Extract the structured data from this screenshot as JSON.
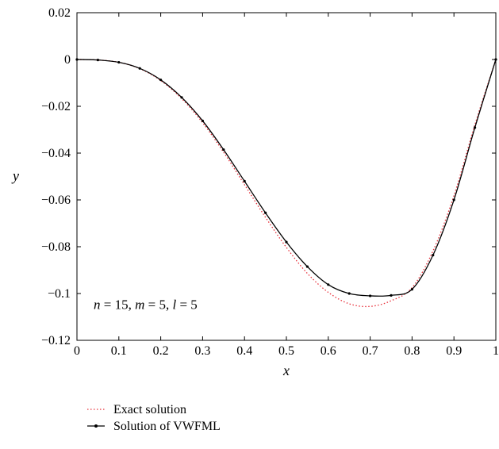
{
  "chart_data": {
    "type": "line",
    "xlabel": "x",
    "ylabel": "y",
    "xlim": [
      0,
      1
    ],
    "ylim": [
      -0.12,
      0.02
    ],
    "xticks": [
      0,
      0.1,
      0.2,
      0.3,
      0.4,
      0.5,
      0.6,
      0.7,
      0.8,
      0.9,
      1
    ],
    "xtick_labels": [
      "0",
      "0.1",
      "0.2",
      "0.3",
      "0.4",
      "0.5",
      "0.6",
      "0.7",
      "0.8",
      "0.9",
      "1"
    ],
    "yticks": [
      0.02,
      0,
      -0.02,
      -0.04,
      -0.06,
      -0.08,
      -0.1,
      -0.12
    ],
    "ytick_labels": [
      "0.02",
      "0",
      "−0.02",
      "−0.04",
      "−0.06",
      "−0.08",
      "−0.1",
      "−0.12"
    ],
    "grid": false,
    "annotation": "n = 15, m = 5, l = 5",
    "legend_position": "below plot, left",
    "x": [
      0,
      0.05,
      0.1,
      0.15,
      0.2,
      0.25,
      0.3,
      0.35,
      0.4,
      0.45,
      0.5,
      0.55,
      0.6,
      0.65,
      0.7,
      0.75,
      0.8,
      0.85,
      0.9,
      0.95,
      1.0
    ],
    "series": [
      {
        "name": "Exact solution",
        "style": "dotted",
        "color": "#e8303a",
        "values": [
          0,
          -0.0002,
          -0.0012,
          -0.0039,
          -0.009,
          -0.0167,
          -0.027,
          -0.0396,
          -0.0535,
          -0.0674,
          -0.0803,
          -0.0914,
          -0.0995,
          -0.1044,
          -0.1055,
          -0.1031,
          -0.0975,
          -0.0818,
          -0.0582,
          -0.0279,
          0
        ]
      },
      {
        "name": "Solution of VWFML",
        "style": "solid-marker",
        "color": "#000000",
        "values": [
          0,
          -0.0002,
          -0.0012,
          -0.0038,
          -0.0087,
          -0.0162,
          -0.0262,
          -0.0385,
          -0.052,
          -0.0655,
          -0.078,
          -0.0885,
          -0.0962,
          -0.1,
          -0.101,
          -0.1008,
          -0.0982,
          -0.0836,
          -0.06,
          -0.0291,
          0
        ]
      }
    ]
  }
}
